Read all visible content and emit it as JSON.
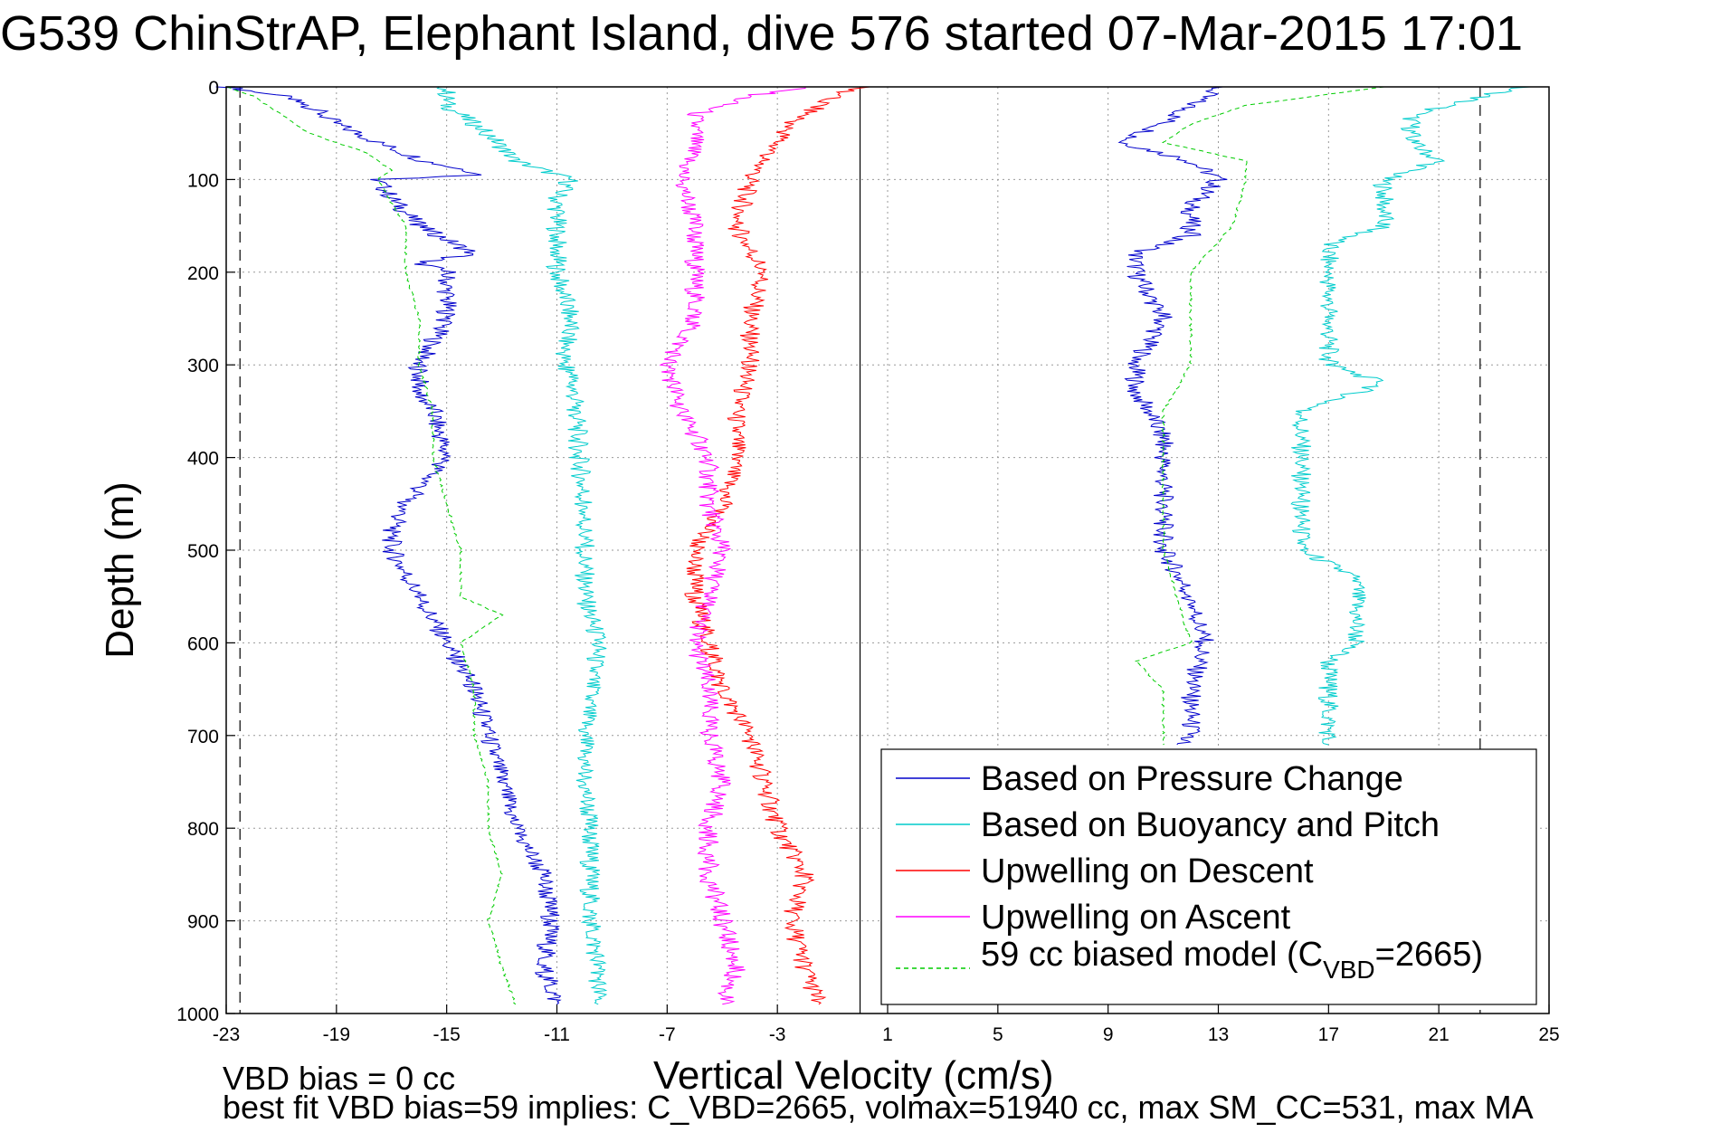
{
  "chart_data": {
    "type": "line",
    "title": "G539 ChinStrAP, Elephant Island, dive 576 started 07-Mar-2015 17:01",
    "xlabel": "Vertical Velocity (cm/s)",
    "ylabel": "Depth (m)",
    "xlim": [
      -23,
      25
    ],
    "ylim": [
      0,
      1000
    ],
    "y_reversed": true,
    "grid": true,
    "legend_position": "bottom-right",
    "xticks": [
      -23,
      -19,
      -15,
      -11,
      -7,
      -3,
      1,
      5,
      9,
      13,
      17,
      21,
      25
    ],
    "yticks": [
      0,
      100,
      200,
      300,
      400,
      500,
      600,
      700,
      800,
      900,
      1000
    ],
    "reference_lines": {
      "dashed_x": [
        -22.5,
        22.5
      ],
      "solid_x": [
        0
      ]
    },
    "series": [
      {
        "name": "Based on Pressure Change",
        "color": "#0000cc",
        "style": "solid",
        "segments": [
          {
            "depth": [
              0,
              10,
              20,
              40,
              60,
              80,
              95,
              100,
              120,
              150,
              180,
              190,
              200,
              250,
              300,
              330,
              350,
              400,
              450,
              480,
              500,
              550,
              600,
              650,
              700,
              750,
              800,
              850,
              900,
              950,
              990
            ],
            "values": [
              -23,
              -21,
              -20,
              -19,
              -17.5,
              -15.8,
              -13.5,
              -17.5,
              -17,
              -16,
              -14,
              -16,
              -15,
              -15,
              -16,
              -16,
              -15.5,
              -15,
              -16.5,
              -17,
              -17,
              -16,
              -15,
              -14,
              -13.5,
              -13,
              -12.5,
              -11.5,
              -11.2,
              -11.5,
              -11
            ]
          },
          {
            "depth": [
              0,
              20,
              40,
              60,
              80,
              100,
              130,
              160,
              180,
              200,
              250,
              300,
              330,
              350,
              380,
              400,
              450,
              500,
              550,
              600,
              650,
              700,
              710
            ],
            "values": [
              13,
              12,
              11,
              9.5,
              12,
              13,
              12,
              12,
              10,
              10,
              11,
              10,
              10,
              10.5,
              11,
              11,
              11,
              11,
              12,
              12.5,
              12,
              12,
              11.5
            ]
          }
        ]
      },
      {
        "name": "Based on Buoyancy and Pitch",
        "color": "#00cccc",
        "style": "solid",
        "segments": [
          {
            "depth": [
              0,
              20,
              50,
              80,
              100,
              120,
              180,
              200,
              250,
              300,
              310,
              350,
              400,
              450,
              500,
              550,
              600,
              650,
              700,
              750,
              800,
              850,
              900,
              950,
              990
            ],
            "values": [
              -15,
              -15,
              -13.5,
              -12.5,
              -10.5,
              -11,
              -11,
              -11,
              -10.5,
              -10.8,
              -10.5,
              -10.3,
              -10.2,
              -10,
              -10,
              -10,
              -9.5,
              -9.8,
              -10,
              -10,
              -9.8,
              -9.8,
              -9.8,
              -9.5,
              -9.5
            ]
          },
          {
            "depth": [
              0,
              30,
              60,
              80,
              100,
              150,
              170,
              200,
              250,
              300,
              320,
              350,
              400,
              450,
              500,
              530,
              550,
              600,
              620,
              650,
              700,
              710
            ],
            "values": [
              24,
              20,
              20,
              21,
              19,
              19,
              17,
              17,
              17,
              17,
              19,
              16,
              16,
              16,
              16,
              18,
              18,
              18,
              17,
              17,
              17,
              17
            ]
          }
        ]
      },
      {
        "name": "Upwelling on Descent",
        "color": "#ff0000",
        "style": "solid",
        "segments": [
          {
            "depth": [
              0,
              10,
              40,
              80,
              100,
              150,
              200,
              250,
              300,
              350,
              400,
              450,
              500,
              550,
              600,
              650,
              700,
              750,
              800,
              850,
              900,
              950,
              990
            ],
            "values": [
              0,
              -1,
              -2.5,
              -3.5,
              -4,
              -4.5,
              -3.5,
              -4,
              -4,
              -4.5,
              -4.5,
              -5,
              -6,
              -6,
              -5.5,
              -5,
              -4,
              -3.5,
              -3,
              -2,
              -2.5,
              -2,
              -1.5
            ]
          }
        ]
      },
      {
        "name": "Upwelling on Ascent",
        "color": "#ff00ff",
        "style": "solid",
        "segments": [
          {
            "depth": [
              0,
              10,
              30,
              60,
              100,
              150,
              200,
              250,
              300,
              350,
              400,
              450,
              500,
              550,
              600,
              650,
              700,
              750,
              800,
              850,
              900,
              950,
              990
            ],
            "values": [
              -2,
              -4,
              -6,
              -6,
              -6.5,
              -6,
              -6,
              -6,
              -7,
              -6.5,
              -5.5,
              -5.5,
              -5,
              -5.5,
              -6,
              -5.5,
              -5.5,
              -5,
              -5.5,
              -5.5,
              -5,
              -4.5,
              -5
            ]
          }
        ]
      },
      {
        "name": "59 cc biased model (C",
        "name_sub": "VBD",
        "name_suffix": "=2665)",
        "color": "#00cc00",
        "style": "dashed",
        "segments": [
          {
            "depth": [
              0,
              10,
              30,
              50,
              70,
              90,
              100,
              150,
              200,
              250,
              300,
              350,
              400,
              450,
              500,
              550,
              570,
              600,
              650,
              700,
              750,
              800,
              850,
              900,
              950,
              990
            ],
            "values": [
              -23,
              -22,
              -21,
              -20,
              -18,
              -17,
              -17.5,
              -16.5,
              -16.5,
              -16,
              -16,
              -15.5,
              -15.5,
              -15,
              -14.5,
              -14.5,
              -13,
              -14.5,
              -14,
              -14,
              -13.5,
              -13.5,
              -13,
              -13.5,
              -13,
              -12.5
            ]
          },
          {
            "depth": [
              0,
              20,
              40,
              60,
              80,
              100,
              150,
              200,
              250,
              300,
              350,
              400,
              450,
              500,
              550,
              600,
              620,
              650,
              700,
              710
            ],
            "values": [
              19,
              14,
              12,
              11,
              14,
              14,
              13.5,
              12,
              12,
              12,
              11,
              11,
              11,
              11,
              11.5,
              12,
              10,
              11,
              11,
              11
            ]
          }
        ]
      }
    ],
    "annotations": [
      "VBD bias = 0 cc",
      "best fit VBD bias=59 implies: C_VBD=2665, volmax=51940 cc, max SM_CC=531, max MA"
    ]
  }
}
